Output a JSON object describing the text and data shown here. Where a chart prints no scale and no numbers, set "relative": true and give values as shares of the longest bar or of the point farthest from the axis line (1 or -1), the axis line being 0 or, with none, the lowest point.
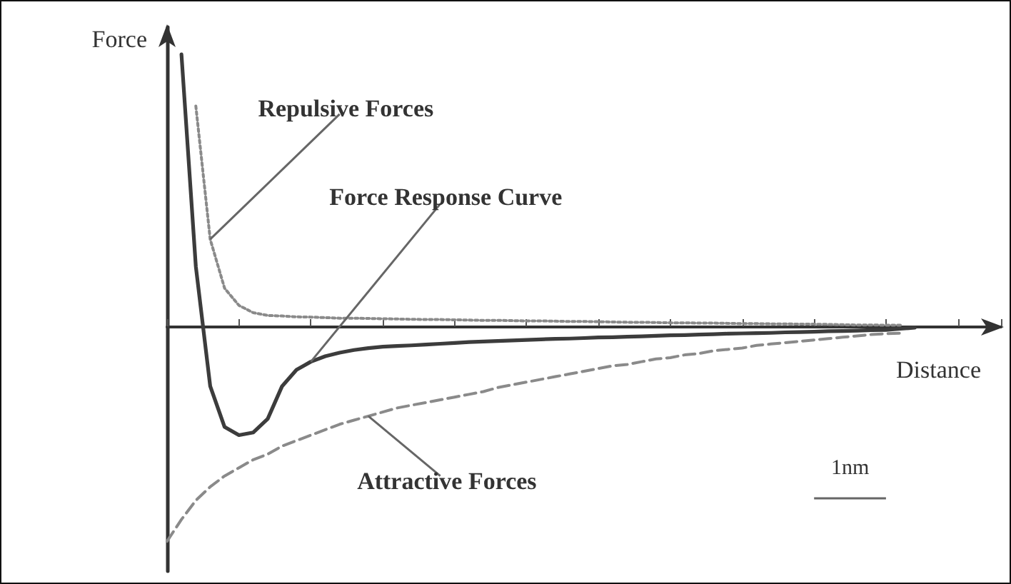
{
  "chart_data": {
    "type": "line",
    "relative": true,
    "xlabel": "Distance",
    "ylabel": "Force",
    "grid": false,
    "marker": "none",
    "categories": [
      null,
      null,
      null,
      null,
      null,
      null,
      null,
      null,
      null,
      null,
      null,
      null,
      null,
      null,
      null,
      null,
      null,
      null,
      null,
      null,
      null,
      null,
      null,
      null,
      null,
      null,
      null,
      null,
      null,
      null,
      null,
      null,
      null,
      null,
      null,
      null,
      null,
      null,
      null,
      null,
      null,
      null,
      null,
      null,
      null,
      null,
      null,
      null,
      null,
      null,
      null,
      null,
      null,
      null,
      null,
      null,
      null,
      null,
      null
    ],
    "series": [
      {
        "color": "#8a8a8a",
        "line_style": "dotted",
        "values": [
          null,
          null,
          0.81,
          0.32,
          0.14,
          0.077,
          0.05,
          0.04,
          0.038,
          0.035,
          0.034,
          0.032,
          0.03,
          0.03,
          0.029,
          0.028,
          0.027,
          0.026,
          0.025,
          0.025,
          0.024,
          0.023,
          0.022,
          0.022,
          0.021,
          0.02,
          0.02,
          0.019,
          0.018,
          0.018,
          0.017,
          0.016,
          0.015,
          0.015,
          0.014,
          0.013,
          0.013,
          0.012,
          0.012,
          0.011,
          0.01,
          0.01,
          0.009,
          0.009,
          0.008,
          0.008,
          0.007,
          0.006,
          0.005,
          0.005,
          0.004,
          0.004,
          null,
          null,
          null,
          null,
          null,
          null,
          null
        ]
      },
      {
        "color": "#3c3c3c",
        "line_style": "solid",
        "values": [
          null,
          1.0,
          0.22,
          -0.22,
          -0.37,
          -0.4,
          -0.39,
          -0.34,
          -0.22,
          -0.16,
          -0.13,
          -0.11,
          -0.097,
          -0.087,
          -0.08,
          -0.075,
          -0.072,
          -0.07,
          -0.067,
          -0.064,
          -0.061,
          -0.058,
          -0.056,
          -0.054,
          -0.052,
          -0.05,
          -0.048,
          -0.046,
          -0.045,
          -0.043,
          -0.041,
          -0.04,
          -0.038,
          -0.037,
          -0.035,
          -0.033,
          -0.032,
          -0.03,
          -0.029,
          -0.027,
          -0.026,
          -0.025,
          -0.024,
          -0.022,
          -0.021,
          -0.02,
          -0.018,
          -0.017,
          -0.016,
          -0.014,
          -0.013,
          -0.009,
          -0.005,
          null,
          null,
          null,
          null,
          null,
          null
        ]
      },
      {
        "color": "#8a8a8a",
        "line_style": "dashed",
        "values": [
          -0.79,
          -0.71,
          -0.64,
          -0.59,
          -0.55,
          -0.52,
          -0.49,
          -0.47,
          -0.44,
          -0.42,
          -0.4,
          -0.38,
          -0.36,
          -0.345,
          -0.33,
          -0.315,
          -0.3,
          -0.29,
          -0.28,
          -0.27,
          -0.26,
          -0.25,
          -0.24,
          -0.225,
          -0.215,
          -0.205,
          -0.195,
          -0.185,
          -0.175,
          -0.165,
          -0.155,
          -0.145,
          -0.14,
          -0.13,
          -0.12,
          -0.115,
          -0.105,
          -0.1,
          -0.09,
          -0.085,
          -0.08,
          -0.07,
          -0.065,
          -0.06,
          -0.055,
          -0.05,
          -0.045,
          -0.04,
          -0.035,
          -0.03,
          -0.027,
          -0.025,
          null,
          null,
          null,
          null,
          null,
          null,
          null
        ]
      }
    ],
    "annotations": [
      "Repulsive Forces",
      "Force Response Curve",
      "Attractive Forces",
      "1nm"
    ]
  }
}
